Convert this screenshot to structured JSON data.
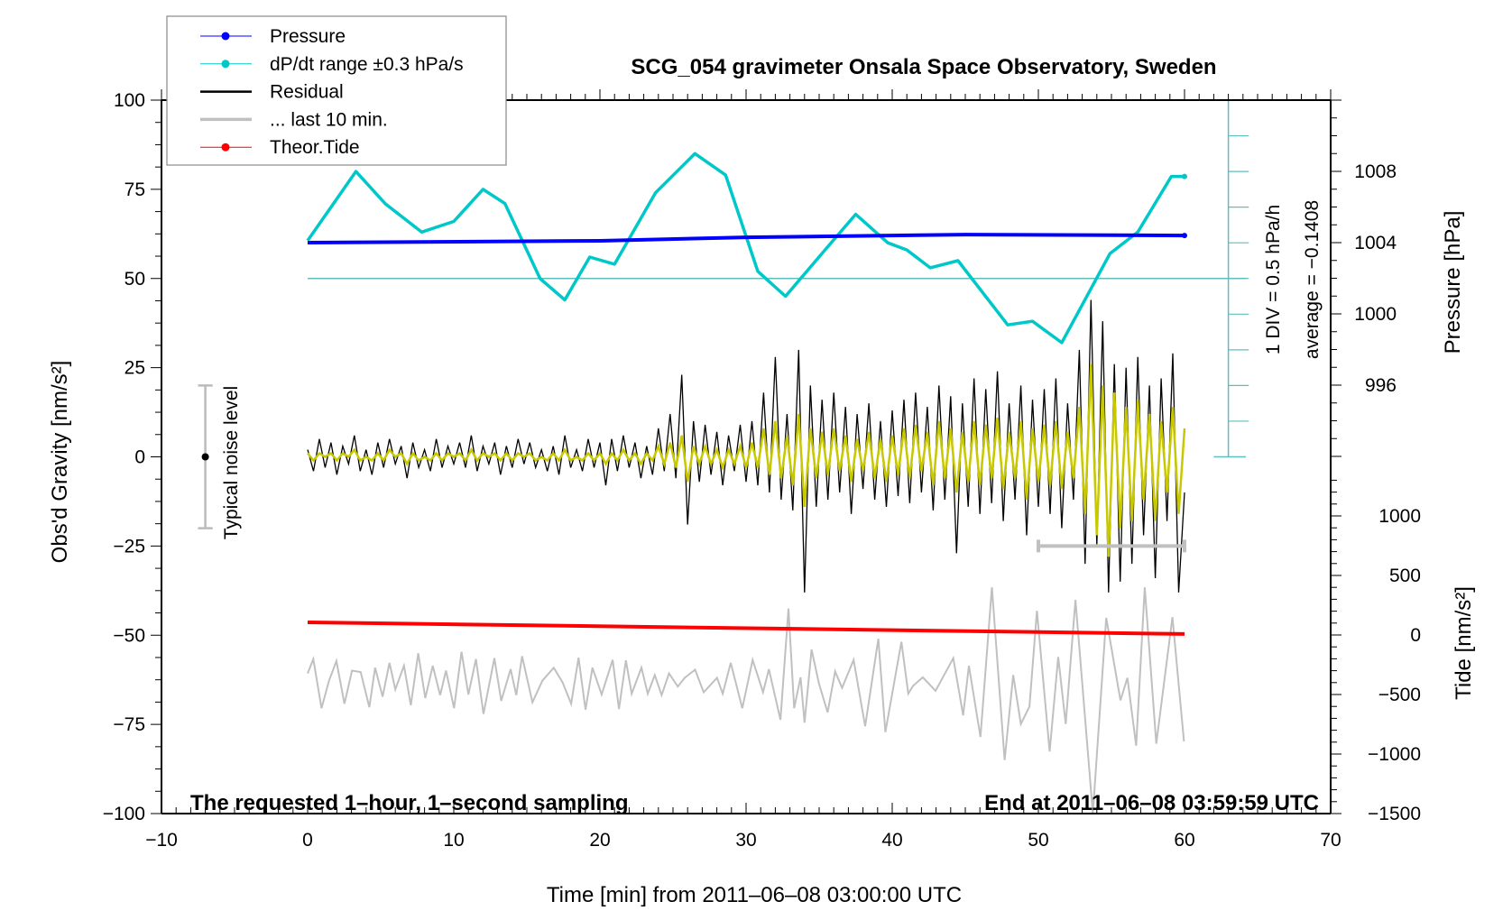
{
  "chart_data": {
    "type": "line",
    "title": "SCG_054 gravimeter Onsala Space Observatory, Sweden",
    "xlabel": "Time [min] from 2011–06–08 03:00:00 UTC",
    "ylabel_left": "Obs'd Gravity [nm/s²]",
    "ylabel_right_top": "Pressure [hPa]",
    "ylabel_right_bottom": "Tide [nm/s²]",
    "annotation_left": "The requested 1–hour, 1–second sampling",
    "annotation_right": "End at 2011–06–08 03:59:59 UTC",
    "noise_label": "Typical noise level",
    "div_label": "1 DIV = 0.5 hPa/h",
    "average_label": "average = −0.1408",
    "xlim": [
      -10,
      70
    ],
    "ylim_left": [
      -100,
      100
    ],
    "grid": false,
    "legend_position": "top-left",
    "x_ticks": [
      "−10",
      "0",
      "10",
      "20",
      "30",
      "40",
      "50",
      "60",
      "70"
    ],
    "x_tick_values": [
      -10,
      0,
      10,
      20,
      30,
      40,
      50,
      60,
      70
    ],
    "y_ticks": [
      "100",
      "75",
      "50",
      "25",
      "0",
      "−25",
      "−50",
      "−75",
      "−100"
    ],
    "y_tick_values": [
      100,
      75,
      50,
      25,
      0,
      -25,
      -50,
      -75,
      -100
    ],
    "pressure_ticks": [
      "1008",
      "1004",
      "1000",
      "996"
    ],
    "pressure_tick_values": [
      1008,
      1004,
      1000,
      996
    ],
    "tide_ticks": [
      "1000",
      "500",
      "0",
      "−500",
      "−1000",
      "−1500"
    ],
    "tide_tick_values": [
      1000,
      500,
      0,
      -500,
      -1000,
      -1500
    ],
    "colors": {
      "pressure": "#0000ff",
      "dpdt": "#00c8c8",
      "dpdt_axis": "#5fbfbf",
      "residual": "#000000",
      "last10": "#c0c0c0",
      "tide": "#ff0000",
      "smoothed": "#c8c800"
    },
    "legend": [
      {
        "label": "Pressure",
        "color": "#0000ff",
        "marker": true
      },
      {
        "label": "dP/dt range ±0.3 hPa/s",
        "color": "#00c8c8",
        "marker": true
      },
      {
        "label": "Residual",
        "color": "#000000",
        "marker": false
      },
      {
        "label": "... last 10 min.",
        "color": "#c0c0c0",
        "marker": false
      },
      {
        "label": "Theor.Tide",
        "color": "#ff0000",
        "marker": true
      }
    ],
    "series": {
      "pressure": {
        "axis": "pressure",
        "points": [
          [
            0,
            1004.0
          ],
          [
            20,
            1004.1
          ],
          [
            30,
            1004.3
          ],
          [
            45,
            1004.45
          ],
          [
            60,
            1004.4
          ]
        ]
      },
      "tide": {
        "axis": "tide",
        "points": [
          [
            0,
            106
          ],
          [
            60,
            8
          ]
        ]
      },
      "dpdt": {
        "axis": "dpdt",
        "unit": "hPa/h",
        "points": [
          [
            0,
            0.53
          ],
          [
            3.3,
            1.5
          ],
          [
            5.3,
            1.05
          ],
          [
            7.8,
            0.65
          ],
          [
            10,
            0.8
          ],
          [
            12,
            1.25
          ],
          [
            13.5,
            1.05
          ],
          [
            15.9,
            0
          ],
          [
            17.6,
            -0.3
          ],
          [
            19.3,
            0.3
          ],
          [
            21,
            0.2
          ],
          [
            23.8,
            1.2
          ],
          [
            26.5,
            1.75
          ],
          [
            28.6,
            1.45
          ],
          [
            30.8,
            0.1
          ],
          [
            32.7,
            -0.25
          ],
          [
            35.4,
            0.4
          ],
          [
            37.5,
            0.9
          ],
          [
            39.7,
            0.5
          ],
          [
            41,
            0.4
          ],
          [
            42.6,
            0.15
          ],
          [
            44.5,
            0.25
          ],
          [
            47.9,
            -0.65
          ],
          [
            49.6,
            -0.6
          ],
          [
            51.6,
            -0.9
          ],
          [
            54.9,
            0.35
          ],
          [
            56.8,
            0.65
          ],
          [
            59.1,
            1.43
          ],
          [
            60,
            1.43
          ]
        ]
      },
      "residual": {
        "axis": "left",
        "x_from": 0,
        "x_to": 60,
        "values": [
          2,
          -4,
          5,
          -3,
          4,
          -5,
          3,
          -2,
          6,
          -4,
          2,
          -5,
          4,
          -3,
          5,
          -2,
          3,
          -6,
          4,
          -3,
          2,
          -4,
          5,
          -3,
          3,
          -2,
          4,
          -3,
          6,
          -4,
          3,
          -2,
          4,
          -5,
          3,
          -3,
          5,
          -2,
          4,
          -3,
          2,
          -4,
          3,
          -5,
          6,
          -3,
          2,
          -4,
          5,
          -3,
          4,
          -8,
          5,
          -4,
          6,
          -3,
          4,
          -6,
          3,
          -5,
          8,
          -4,
          12,
          -6,
          23,
          -19,
          10,
          -7,
          9,
          -5,
          7,
          -8,
          6,
          -4,
          9,
          -7,
          10,
          -8,
          18,
          -10,
          28,
          -12,
          12,
          -15,
          30,
          -38,
          20,
          -14,
          16,
          -12,
          18,
          -10,
          14,
          -16,
          12,
          -9,
          15,
          -12,
          10,
          -14,
          13,
          -11,
          16,
          -13,
          18,
          -10,
          14,
          -15,
          20,
          -12,
          17,
          -27,
          15,
          -14,
          22,
          -16,
          19,
          -13,
          24,
          -18,
          15,
          -12,
          20,
          -22,
          16,
          -14,
          19,
          -16,
          22,
          -20,
          15,
          -12,
          30,
          -30,
          44,
          -25,
          38,
          -38,
          26,
          -35,
          25,
          -30,
          28,
          -22,
          20,
          -34,
          22,
          -18,
          29,
          -38,
          -10
        ]
      },
      "smoothed": {
        "axis": "left",
        "x_from": 0,
        "x_to": 60,
        "values": [
          1,
          -1,
          1,
          0,
          1,
          -1,
          1,
          0,
          2,
          -1,
          0,
          -1,
          1,
          -1,
          2,
          0,
          1,
          -2,
          1,
          -1,
          0,
          -1,
          1,
          -1,
          1,
          0,
          1,
          -1,
          2,
          -1,
          1,
          0,
          1,
          -1,
          1,
          -1,
          1,
          0,
          1,
          -1,
          0,
          -1,
          1,
          -1,
          2,
          -1,
          0,
          -1,
          1,
          -1,
          1,
          -2,
          1,
          -1,
          2,
          -1,
          1,
          -2,
          1,
          -1,
          3,
          -2,
          4,
          -3,
          6,
          -7,
          3,
          -2,
          3,
          -2,
          2,
          -3,
          2,
          -2,
          3,
          -3,
          4,
          -3,
          8,
          -5,
          10,
          -6,
          6,
          -8,
          12,
          -14,
          8,
          -6,
          7,
          -5,
          8,
          -4,
          6,
          -7,
          5,
          -4,
          7,
          -6,
          5,
          -7,
          6,
          -5,
          8,
          -6,
          9,
          -4,
          7,
          -8,
          10,
          -6,
          8,
          -10,
          7,
          -7,
          10,
          -8,
          9,
          -6,
          11,
          -9,
          7,
          -6,
          10,
          -12,
          8,
          -7,
          9,
          -8,
          10,
          -9,
          7,
          -6,
          14,
          -16,
          26,
          -22,
          20,
          -28,
          18,
          -20,
          14,
          -18,
          16,
          -12,
          12,
          -18,
          10,
          -10,
          14,
          -16,
          8
        ]
      },
      "last10": {
        "axis": "tide",
        "points": [
          [
            0,
            -323
          ],
          [
            0.39,
            -202
          ],
          [
            0.95,
            -615
          ],
          [
            1.46,
            -384
          ],
          [
            1.97,
            -219
          ],
          [
            2.52,
            -578
          ],
          [
            3.04,
            -299
          ],
          [
            3.63,
            -311
          ],
          [
            4.22,
            -607
          ],
          [
            4.62,
            -275
          ],
          [
            5.13,
            -518
          ],
          [
            5.6,
            -234
          ],
          [
            6,
            -457
          ],
          [
            6.59,
            -258
          ],
          [
            7.06,
            -590
          ],
          [
            7.57,
            -154
          ],
          [
            8.05,
            -530
          ],
          [
            8.56,
            -258
          ],
          [
            9.07,
            -505
          ],
          [
            9.47,
            -299
          ],
          [
            10.02,
            -615
          ],
          [
            10.53,
            -141
          ],
          [
            11,
            -500
          ],
          [
            11.52,
            -202
          ],
          [
            12.03,
            -663
          ],
          [
            12.78,
            -195
          ],
          [
            13.25,
            -554
          ],
          [
            13.89,
            -287
          ],
          [
            14.28,
            -505
          ],
          [
            14.67,
            -178
          ],
          [
            15.38,
            -566
          ],
          [
            16.06,
            -384
          ],
          [
            16.84,
            -275
          ],
          [
            17.44,
            -396
          ],
          [
            18.03,
            -578
          ],
          [
            18.54,
            -190
          ],
          [
            19.01,
            -627
          ],
          [
            19.49,
            -275
          ],
          [
            20.12,
            -500
          ],
          [
            20.87,
            -209
          ],
          [
            21.3,
            -622
          ],
          [
            21.78,
            -214
          ],
          [
            22.17,
            -493
          ],
          [
            22.84,
            -275
          ],
          [
            23.27,
            -493
          ],
          [
            23.75,
            -336
          ],
          [
            24.22,
            -505
          ],
          [
            24.73,
            -323
          ],
          [
            25.33,
            -433
          ],
          [
            25.8,
            -360
          ],
          [
            26.51,
            -292
          ],
          [
            27.1,
            -481
          ],
          [
            28.01,
            -360
          ],
          [
            28.4,
            -493
          ],
          [
            28.95,
            -234
          ],
          [
            29.74,
            -615
          ],
          [
            30.45,
            -209
          ],
          [
            31.16,
            -481
          ],
          [
            31.56,
            -287
          ],
          [
            32.35,
            -712
          ],
          [
            32.9,
            222
          ],
          [
            33.29,
            -615
          ],
          [
            33.73,
            -355
          ],
          [
            34,
            -736
          ],
          [
            34.48,
            -122
          ],
          [
            34.99,
            -408
          ],
          [
            35.58,
            -651
          ],
          [
            36.09,
            -306
          ],
          [
            36.57,
            -445
          ],
          [
            37.36,
            -209
          ],
          [
            38.15,
            -767
          ],
          [
            39.05,
            -32
          ],
          [
            39.53,
            -816
          ],
          [
            40.63,
            -57
          ],
          [
            41.1,
            -493
          ],
          [
            41.42,
            -428
          ],
          [
            42.09,
            -355
          ],
          [
            42.96,
            -469
          ],
          [
            44.18,
            -195
          ],
          [
            44.85,
            -675
          ],
          [
            45.25,
            -258
          ],
          [
            46.04,
            -857
          ],
          [
            46.82,
            400
          ],
          [
            47.69,
            -1051
          ],
          [
            48.28,
            -336
          ],
          [
            48.8,
            -748
          ],
          [
            49.39,
            -602
          ],
          [
            49.9,
            203
          ],
          [
            50.77,
            -978
          ],
          [
            51.36,
            -185
          ],
          [
            51.87,
            -748
          ],
          [
            52.54,
            295
          ],
          [
            53.73,
            -1500
          ],
          [
            54.64,
            145
          ],
          [
            55.62,
            -549
          ],
          [
            56.09,
            -360
          ],
          [
            56.69,
            -930
          ],
          [
            57.28,
            400
          ],
          [
            58.07,
            -913
          ],
          [
            59.17,
            150
          ],
          [
            59.96,
            -894
          ]
        ]
      }
    }
  }
}
